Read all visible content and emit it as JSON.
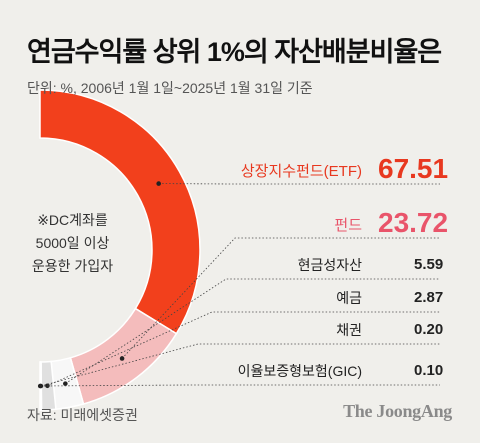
{
  "title": "연금수익률 상위 1%의 자산배분비율은",
  "unit_note": "단위: %, 2006년 1월 1일~2025년 1월 31일 기준",
  "center_note": [
    "※DC계좌를",
    "5000일 이상",
    "운용한 가입자"
  ],
  "source": "자료: 미래에셋증권",
  "brand": "The JoongAng",
  "chart_data": {
    "type": "donut",
    "title": "연금수익률 상위 1%의 자산배분비율은",
    "unit": "%",
    "categories": [
      "상장지수펀드(ETF)",
      "펀드",
      "현금성자산",
      "예금",
      "채권",
      "이율보증형보험(GIC)"
    ],
    "values": [
      67.51,
      23.72,
      5.59,
      2.87,
      0.2,
      0.1
    ],
    "value_labels": [
      "67.51",
      "23.72",
      "5.59",
      "2.87",
      "0.20",
      "0.10"
    ],
    "colors": [
      "#f2401c",
      "#f4bcbc",
      "#f7f7f7",
      "#e0e0e0",
      "#d8d8d8",
      "#555555"
    ],
    "label_colors": [
      "#e8381f",
      "#e9546a",
      "#222222",
      "#222222",
      "#222222",
      "#222222"
    ]
  }
}
